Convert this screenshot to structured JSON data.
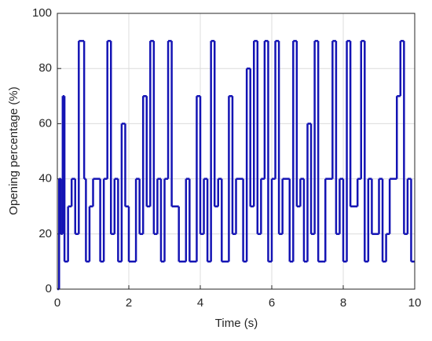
{
  "chart_data": {
    "type": "line",
    "drawstyle": "steps-post",
    "xlabel": "Time (s)",
    "ylabel": "Opening percentage (%)",
    "xlim": [
      0,
      10
    ],
    "ylim": [
      0,
      100
    ],
    "xticks": [
      0,
      2,
      4,
      6,
      8,
      10
    ],
    "yticks": [
      0,
      20,
      40,
      60,
      80,
      100
    ],
    "grid": true,
    "series": [
      {
        "color": "#1414b4",
        "x": [
          0,
          0.05,
          0.1,
          0.15,
          0.2,
          0.3,
          0.4,
          0.5,
          0.6,
          0.75,
          0.8,
          0.9,
          1.0,
          1.2,
          1.3,
          1.4,
          1.5,
          1.6,
          1.7,
          1.8,
          1.9,
          2.0,
          2.2,
          2.3,
          2.4,
          2.5,
          2.6,
          2.7,
          2.8,
          2.9,
          3.0,
          3.1,
          3.2,
          3.4,
          3.6,
          3.7,
          3.9,
          4.0,
          4.1,
          4.2,
          4.3,
          4.4,
          4.5,
          4.6,
          4.8,
          4.9,
          5.0,
          5.2,
          5.3,
          5.4,
          5.5,
          5.6,
          5.7,
          5.8,
          5.9,
          6.0,
          6.1,
          6.2,
          6.3,
          6.5,
          6.6,
          6.7,
          6.8,
          6.9,
          7.0,
          7.1,
          7.2,
          7.3,
          7.5,
          7.7,
          7.8,
          7.9,
          8.0,
          8.1,
          8.2,
          8.4,
          8.5,
          8.6,
          8.7,
          8.8,
          9.0,
          9.1,
          9.2,
          9.3,
          9.5,
          9.6,
          9.7,
          9.8,
          9.9
        ],
        "values": [
          0,
          40,
          20,
          70,
          10,
          30,
          40,
          20,
          90,
          40,
          10,
          30,
          40,
          10,
          40,
          90,
          20,
          40,
          10,
          60,
          30,
          10,
          40,
          20,
          70,
          30,
          90,
          20,
          40,
          10,
          40,
          90,
          30,
          10,
          40,
          10,
          70,
          20,
          40,
          10,
          90,
          30,
          40,
          10,
          70,
          20,
          40,
          10,
          80,
          30,
          90,
          20,
          40,
          90,
          10,
          40,
          90,
          20,
          40,
          10,
          90,
          30,
          40,
          10,
          60,
          20,
          90,
          10,
          40,
          90,
          20,
          40,
          10,
          90,
          30,
          40,
          90,
          10,
          40,
          20,
          40,
          10,
          20,
          40,
          70,
          90,
          20,
          40,
          10
        ]
      }
    ]
  }
}
